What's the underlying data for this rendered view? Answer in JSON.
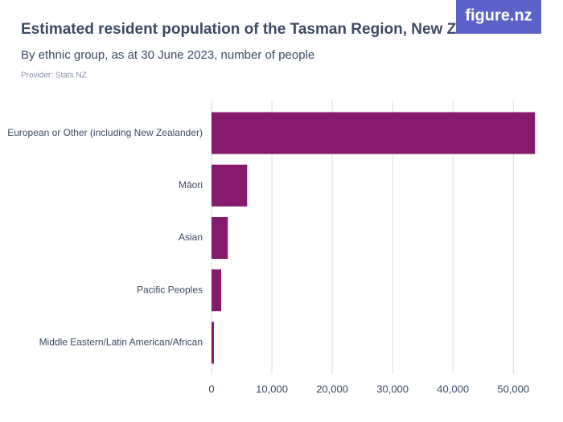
{
  "chart_data": {
    "type": "bar",
    "orientation": "horizontal",
    "title": "Estimated resident population of the Tasman Region, New Zealand",
    "subtitle": "By ethnic group, as at 30 June 2023, number of people",
    "provider": "Provider: Stats NZ",
    "logo": "figure.nz",
    "categories": [
      "European or Other (including New Zealander)",
      "Māori",
      "Asian",
      "Pacific Peoples",
      "Middle Eastern/Latin American/African"
    ],
    "values": [
      53600,
      5900,
      2700,
      1600,
      400
    ],
    "color": "#861a6c",
    "xlim": [
      0,
      54500
    ],
    "xticks": [
      0,
      {
        "value": 10000,
        "label": "10,000"
      },
      {
        "value": 20000,
        "label": "20,000"
      },
      {
        "value": 30000,
        "label": "30,000"
      },
      {
        "value": 40000,
        "label": "40,000"
      },
      {
        "value": 50000,
        "label": "50,000"
      }
    ],
    "grid": true
  }
}
